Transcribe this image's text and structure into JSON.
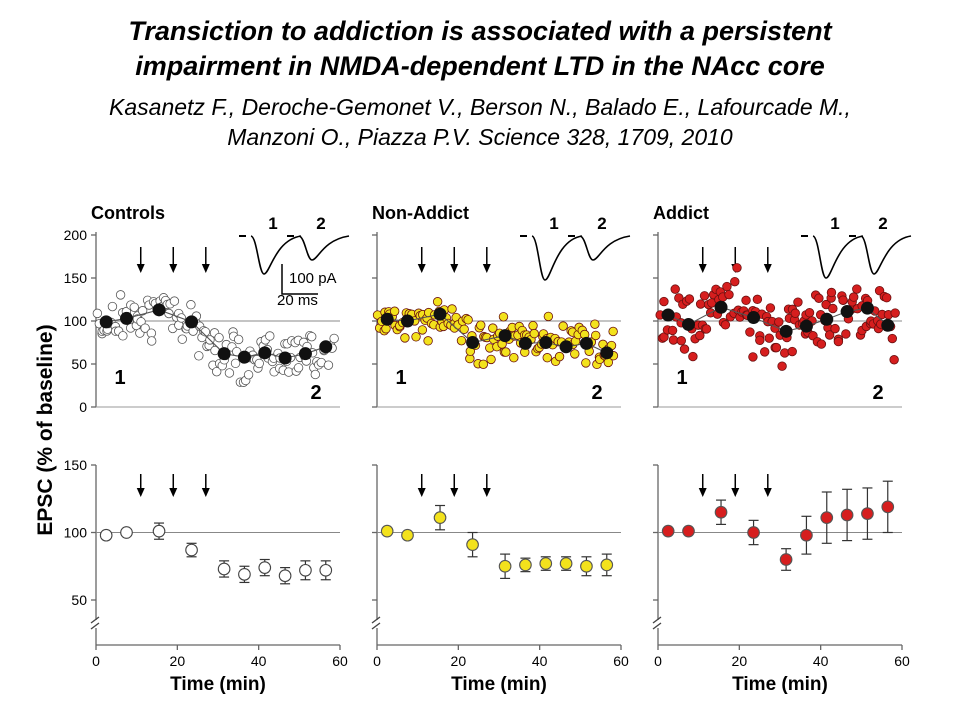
{
  "slide": {
    "title_line1": "Transiction to addiction is associated with a persistent",
    "title_line2": "impairment in NMDA-dependent LTD in the NAcc core",
    "citation_line1": "Kasanetz F., Deroche-Gemonet V., Berson N., Balado E., Lafourcade M.,",
    "citation_line2": "Manzoni O., Piazza P.V. Science 328, 1709, 2010"
  },
  "figure": {
    "ylabel": "EPSC (% of baseline)",
    "xlabel": "Time (min)",
    "x_ticks": [
      0,
      20,
      40,
      60
    ],
    "top_y_ticks": [
      0,
      50,
      100,
      150,
      200
    ],
    "bottom_y_ticks": [
      50,
      100,
      150
    ],
    "scale_bar": {
      "current": "100 pA",
      "time": "20 ms"
    },
    "trace_labels": [
      "1",
      "2"
    ],
    "period_labels": [
      "1",
      "2"
    ],
    "arrow_times": [
      11,
      19,
      27
    ]
  },
  "chart_data": [
    {
      "type": "scatter",
      "title": "Controls",
      "panel": "individual",
      "marker_color": "#ffffff",
      "xlabel": "Time (min)",
      "ylabel": "EPSC (% of baseline)",
      "xlim": [
        0,
        60
      ],
      "ylim": [
        0,
        200
      ],
      "legend": "none",
      "series": [
        {
          "x": [
            2.5,
            7.5,
            15.5,
            23.5,
            31.5,
            36.5,
            41.5,
            46.5,
            51.5,
            56.5
          ],
          "y": [
            99,
            103,
            113,
            99,
            62,
            58,
            63,
            57,
            62,
            70
          ]
        }
      ]
    },
    {
      "type": "scatter",
      "title": "Non-Addict",
      "panel": "individual",
      "marker_color": "#f3e21c",
      "xlabel": "Time (min)",
      "ylabel": "EPSC (% of baseline)",
      "xlim": [
        0,
        60
      ],
      "ylim": [
        0,
        200
      ],
      "legend": "none",
      "series": [
        {
          "x": [
            2.5,
            7.5,
            15.5,
            23.5,
            31.5,
            36.5,
            41.5,
            46.5,
            51.5,
            56.5
          ],
          "y": [
            102,
            100,
            108,
            75,
            83,
            74,
            75,
            70,
            74,
            63
          ]
        }
      ]
    },
    {
      "type": "scatter",
      "title": "Addict",
      "panel": "individual",
      "marker_color": "#d61e1e",
      "xlabel": "Time (min)",
      "ylabel": "EPSC (% of baseline)",
      "xlim": [
        0,
        60
      ],
      "ylim": [
        0,
        200
      ],
      "legend": "none",
      "series": [
        {
          "x": [
            2.5,
            7.5,
            15.5,
            23.5,
            31.5,
            36.5,
            41.5,
            46.5,
            51.5,
            56.5
          ],
          "y": [
            107,
            96,
            116,
            104,
            88,
            94,
            102,
            111,
            115,
            95
          ]
        }
      ]
    },
    {
      "type": "scatter",
      "title": "",
      "panel": "mean",
      "marker_color": "#ffffff",
      "xlabel": "Time (min)",
      "ylabel": "EPSC (% of baseline)",
      "xlim": [
        0,
        60
      ],
      "ylim": [
        40,
        150
      ],
      "legend": "none",
      "series": [
        {
          "x": [
            2.5,
            7.5,
            15.5,
            23.5,
            31.5,
            36.5,
            41.5,
            46.5,
            51.5,
            56.5
          ],
          "y": [
            98,
            100,
            101,
            87,
            73,
            69,
            74,
            68,
            72,
            72
          ],
          "error": [
            0,
            0,
            6,
            5,
            6,
            6,
            6,
            6,
            7,
            7
          ]
        }
      ]
    },
    {
      "type": "scatter",
      "title": "",
      "panel": "mean",
      "marker_color": "#f3e21c",
      "xlabel": "Time (min)",
      "ylabel": "EPSC (% of baseline)",
      "xlim": [
        0,
        60
      ],
      "ylim": [
        40,
        150
      ],
      "legend": "none",
      "series": [
        {
          "x": [
            2.5,
            7.5,
            15.5,
            23.5,
            31.5,
            36.5,
            41.5,
            46.5,
            51.5,
            56.5
          ],
          "y": [
            101,
            98,
            111,
            91,
            75,
            76,
            77,
            77,
            75,
            76
          ],
          "error": [
            0,
            0,
            9,
            9,
            9,
            5,
            5,
            5,
            7,
            8
          ]
        }
      ]
    },
    {
      "type": "scatter",
      "title": "",
      "panel": "mean",
      "marker_color": "#d61e1e",
      "xlabel": "Time (min)",
      "ylabel": "EPSC (% of baseline)",
      "xlim": [
        0,
        60
      ],
      "ylim": [
        40,
        150
      ],
      "legend": "none",
      "series": [
        {
          "x": [
            2.5,
            7.5,
            15.5,
            23.5,
            31.5,
            36.5,
            41.5,
            46.5,
            51.5,
            56.5
          ],
          "y": [
            101,
            101,
            115,
            100,
            80,
            98,
            111,
            113,
            114,
            119
          ],
          "error": [
            0,
            0,
            9,
            9,
            8,
            14,
            19,
            19,
            19,
            19
          ]
        }
      ]
    }
  ]
}
